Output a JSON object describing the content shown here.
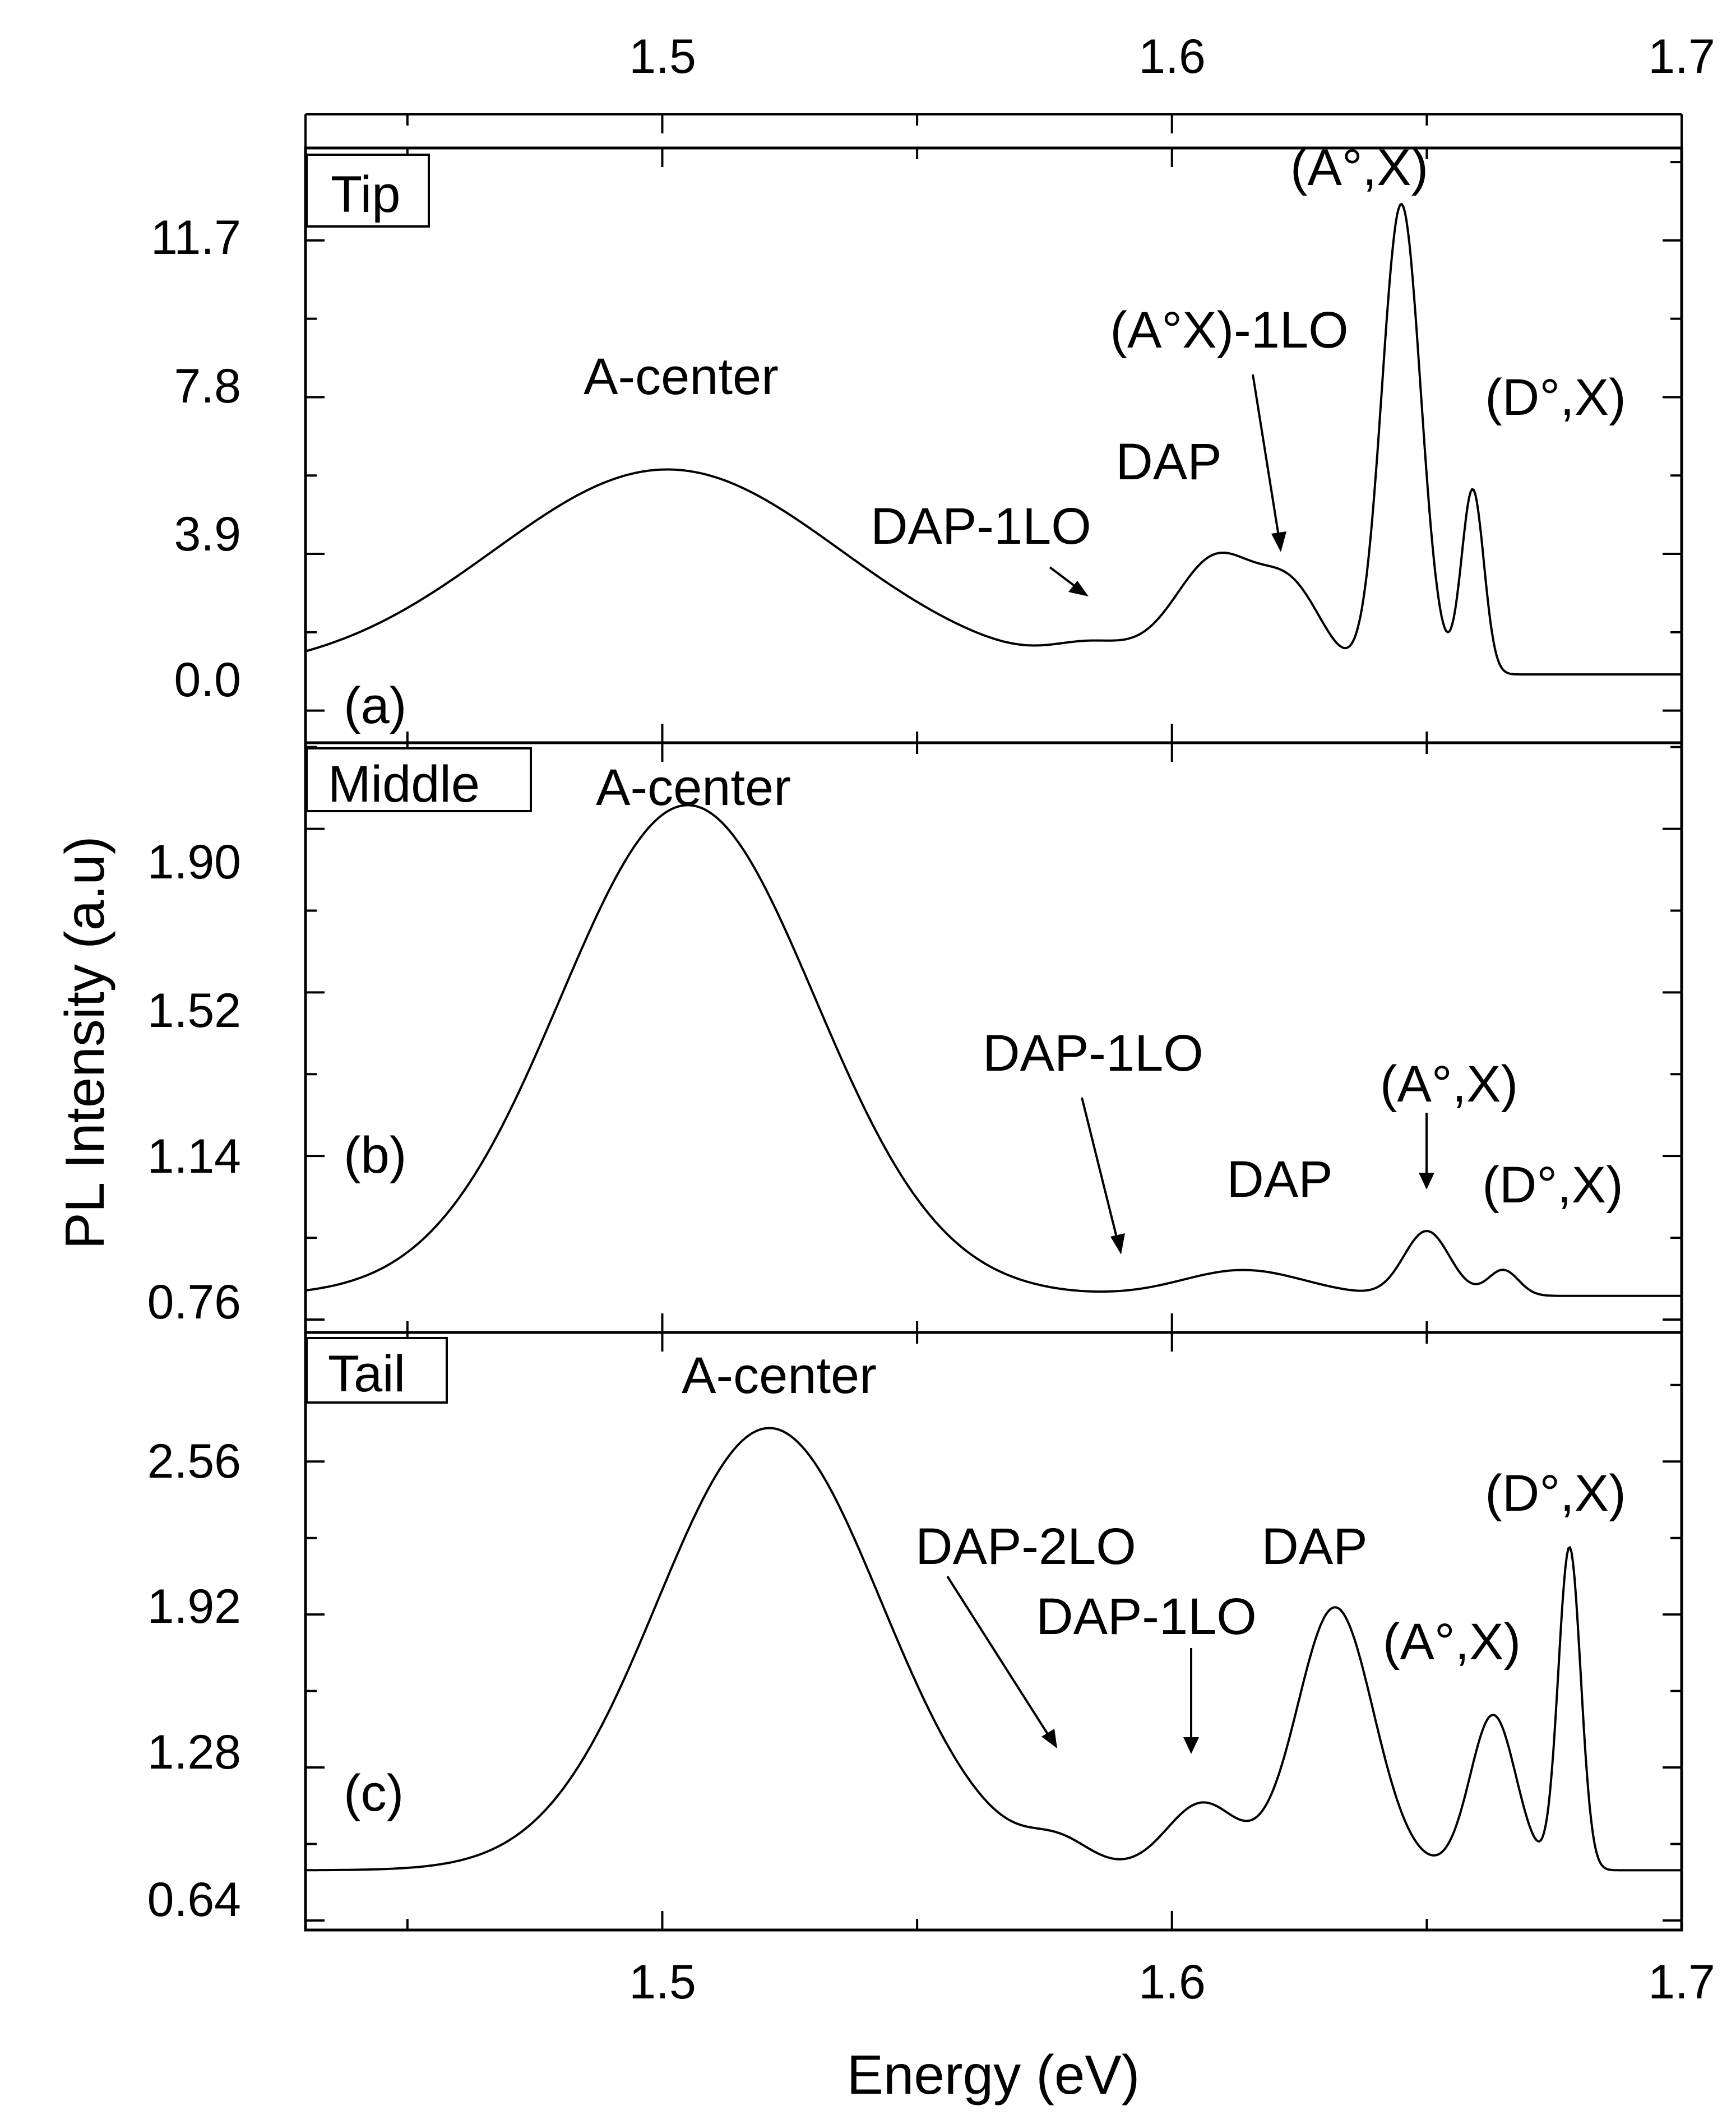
{
  "figure": {
    "top_axis_ticks": [
      "1.5",
      "1.6",
      "1.7"
    ],
    "bottom_axis_ticks": [
      "1.5",
      "1.6",
      "1.7"
    ],
    "xlabel": "Energy (eV)",
    "ylabel": "PL Intensity (a.u)"
  },
  "chart_data": [
    {
      "type": "line",
      "panel_label": "(a)",
      "region": "Tip",
      "xlim": [
        1.43,
        1.7
      ],
      "ylim": [
        -0.8,
        14.0
      ],
      "yticks": [
        "0.0",
        "3.9",
        "7.8",
        "11.7"
      ],
      "ytick_values": [
        0.0,
        3.9,
        7.8,
        11.7
      ],
      "series": [
        {
          "name": "Tip",
          "baseline": 0.9,
          "peaks": [
            {
              "center": 1.501,
              "height": 5.1,
              "width": 0.034
            },
            {
              "center": 1.585,
              "height": 0.55,
              "width": 0.008
            },
            {
              "center": 1.609,
              "height": 2.9,
              "width": 0.0085
            },
            {
              "center": 1.624,
              "height": 1.75,
              "width": 0.006
            },
            {
              "center": 1.645,
              "height": 11.7,
              "width": 0.0038
            },
            {
              "center": 1.659,
              "height": 4.6,
              "width": 0.0022
            }
          ]
        }
      ],
      "annotations": [
        {
          "text": "A-center"
        },
        {
          "text": "DAP-1LO",
          "arrow_to": [
            1.585,
            1.5
          ]
        },
        {
          "text": "DAP"
        },
        {
          "text": "(A°X)-1LO",
          "arrow_to": [
            1.623,
            3.2
          ]
        },
        {
          "text": "(A°,X)"
        },
        {
          "text": "(D°,X)"
        }
      ]
    },
    {
      "type": "line",
      "panel_label": "(b)",
      "region": "Middle",
      "xlim": [
        1.43,
        1.7
      ],
      "ylim": [
        0.73,
        2.1
      ],
      "yticks": [
        "0.76",
        "1.14",
        "1.52",
        "1.90"
      ],
      "ytick_values": [
        0.76,
        1.14,
        1.52,
        1.9
      ],
      "series": [
        {
          "name": "Middle",
          "baseline": 0.815,
          "peaks": [
            {
              "center": 1.505,
              "height": 1.14,
              "width": 0.025
            },
            {
              "center": 1.614,
              "height": 0.06,
              "width": 0.012
            },
            {
              "center": 1.65,
              "height": 0.15,
              "width": 0.0045
            },
            {
              "center": 1.665,
              "height": 0.06,
              "width": 0.003
            }
          ]
        }
      ],
      "annotations": [
        {
          "text": "A-center"
        },
        {
          "text": "DAP-1LO",
          "arrow_to": [
            1.592,
            0.84
          ]
        },
        {
          "text": "DAP"
        },
        {
          "text": "(A°,X)",
          "arrow_to": [
            1.65,
            1.0
          ]
        },
        {
          "text": "(D°,X)"
        }
      ]
    },
    {
      "type": "line",
      "panel_label": "(c)",
      "region": "Tail",
      "xlim": [
        1.43,
        1.7
      ],
      "ylim": [
        0.6,
        3.1
      ],
      "yticks": [
        "0.64",
        "1.28",
        "1.92",
        "2.56"
      ],
      "ytick_values": [
        0.64,
        1.28,
        1.92,
        2.56
      ],
      "series": [
        {
          "name": "Tail",
          "baseline": 0.85,
          "peaks": [
            {
              "center": 1.521,
              "height": 1.85,
              "width": 0.022
            },
            {
              "center": 1.578,
              "height": 0.09,
              "width": 0.006
            },
            {
              "center": 1.606,
              "height": 0.28,
              "width": 0.007
            },
            {
              "center": 1.632,
              "height": 1.1,
              "width": 0.0075
            },
            {
              "center": 1.663,
              "height": 0.65,
              "width": 0.0045
            },
            {
              "center": 1.678,
              "height": 1.35,
              "width": 0.0022
            }
          ]
        }
      ],
      "annotations": [
        {
          "text": "A-center"
        },
        {
          "text": "DAP-2LO",
          "arrow_to": [
            1.578,
            1.03
          ]
        },
        {
          "text": "DAP-1LO",
          "arrow_to": [
            1.605,
            1.15
          ]
        },
        {
          "text": "DAP"
        },
        {
          "text": "(A°,X)"
        },
        {
          "text": "(D°,X)"
        }
      ]
    }
  ]
}
